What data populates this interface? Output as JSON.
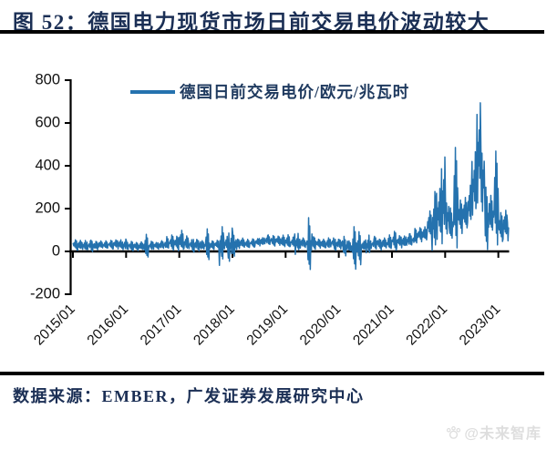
{
  "header": {
    "title": "图 52：德国电力现货市场日前交易电价波动较大"
  },
  "footer": {
    "source_label": "数据来源：EMBER，广发证券发展研究中心",
    "watermark": "@未来智库"
  },
  "colors": {
    "title_navy": "#1b2f55",
    "legend_navy": "#1f3a5f",
    "line_blue": "#2572ae",
    "axis_black": "#000000",
    "watermark_gray": "#dedede"
  },
  "chart_data": {
    "type": "line",
    "title": "",
    "xlabel": "",
    "ylabel": "",
    "legend": "德国日前交易电价/欧元/兆瓦时",
    "legend_position": "top-center",
    "grid": false,
    "ylim": [
      -200,
      800
    ],
    "yticks": [
      800,
      600,
      400,
      200,
      0,
      -200
    ],
    "xtick_labels": [
      "2015/01",
      "2016/01",
      "2017/01",
      "2018/01",
      "2019/01",
      "2020/01",
      "2021/01",
      "2022/01",
      "2023/01"
    ],
    "x_start": "2015/01",
    "x_end": "2023/03",
    "series": [
      {
        "name": "德国日前交易电价/欧元/兆瓦时",
        "unit": "欧元/兆瓦时",
        "sampling": "monthly average with daily volatility half-range, 2015/01 - 2023/03",
        "monthly_avg": [
          32,
          30,
          28,
          28,
          26,
          29,
          32,
          31,
          33,
          35,
          34,
          30,
          28,
          25,
          24,
          26,
          24,
          27,
          28,
          28,
          32,
          40,
          42,
          40,
          52,
          40,
          33,
          30,
          30,
          30,
          30,
          30,
          33,
          28,
          38,
          30,
          33,
          38,
          40,
          36,
          40,
          44,
          46,
          52,
          53,
          50,
          52,
          48,
          48,
          44,
          40,
          40,
          38,
          33,
          40,
          38,
          36,
          38,
          41,
          34,
          36,
          24,
          24,
          18,
          18,
          26,
          30,
          34,
          41,
          34,
          39,
          43,
          52,
          48,
          46,
          52,
          54,
          74,
          81,
          83,
          128,
          139,
          180,
          240,
          167,
          129,
          252,
          165,
          179,
          218,
          315,
          465,
          346,
          154,
          177,
          251,
          117,
          128,
          101
        ],
        "monthly_vol": [
          26,
          22,
          20,
          22,
          24,
          20,
          18,
          16,
          18,
          22,
          20,
          24,
          20,
          20,
          20,
          20,
          50,
          20,
          16,
          16,
          20,
          26,
          32,
          36,
          48,
          28,
          22,
          30,
          26,
          22,
          70,
          18,
          22,
          88,
          28,
          80,
          50,
          22,
          24,
          18,
          18,
          18,
          18,
          18,
          22,
          22,
          22,
          30,
          26,
          22,
          50,
          22,
          22,
          120,
          26,
          22,
          22,
          22,
          22,
          26,
          22,
          50,
          22,
          95,
          80,
          22,
          40,
          22,
          26,
          26,
          26,
          30,
          40,
          30,
          26,
          26,
          26,
          30,
          34,
          34,
          55,
          140,
          120,
          200,
          90,
          70,
          230,
          80,
          75,
          85,
          150,
          235,
          155,
          150,
          80,
          215,
          70,
          65,
          55
        ],
        "peak_value": 700,
        "peak_month": "2022/08"
      }
    ]
  }
}
